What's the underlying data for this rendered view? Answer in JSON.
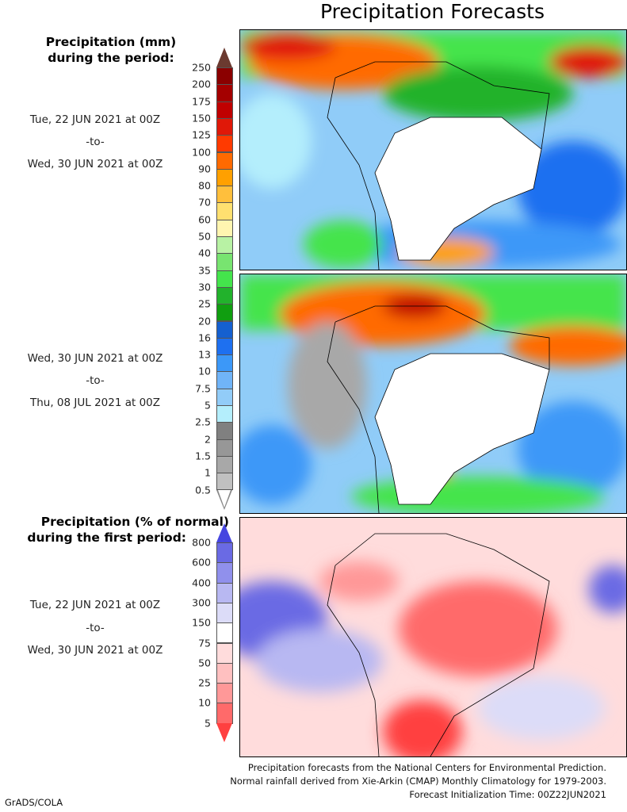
{
  "title": "Precipitation Forecasts",
  "amount_legend": {
    "heading": [
      "Precipitation (mm)",
      "during the period:"
    ],
    "labels": [
      "250",
      "200",
      "175",
      "150",
      "125",
      "100",
      "90",
      "80",
      "70",
      "60",
      "50",
      "40",
      "35",
      "30",
      "25",
      "20",
      "16",
      "13",
      "10",
      "7.5",
      "5",
      "2.5",
      "2",
      "1.5",
      "1",
      "0.5"
    ],
    "colors": [
      "#8b0000",
      "#a40000",
      "#c00000",
      "#e01808",
      "#ff3a00",
      "#ff6a00",
      "#ffa000",
      "#ffbf3c",
      "#ffe070",
      "#fff5b0",
      "#b8f2a4",
      "#78e470",
      "#44e44c",
      "#22b22c",
      "#109e10",
      "#1560d0",
      "#1e70f0",
      "#3c98f8",
      "#70b4f8",
      "#92ccf8",
      "#b4eefc",
      "#808080",
      "#979797",
      "#a8a8a8",
      "#c0c0c0"
    ],
    "over_color": "#6b3a30",
    "under_color": "#ffffff"
  },
  "period1": {
    "start": "Tue, 22 JUN 2021 at 00Z",
    "sep": "-to-",
    "end": "Wed, 30 JUN 2021 at 00Z"
  },
  "period2": {
    "start": "Wed, 30 JUN 2021 at 00Z",
    "sep": "-to-",
    "end": "Thu, 08 JUL 2021 at 00Z"
  },
  "percent_legend": {
    "heading": [
      "Precipitation (% of normal)",
      "during the first period:"
    ],
    "labels": [
      "800",
      "600",
      "400",
      "300",
      "150",
      "75",
      "50",
      "25",
      "10",
      "5"
    ],
    "colors": [
      "#6a6ae4",
      "#9090ec",
      "#b8b8f2",
      "#dcdcf8",
      "#ffffff",
      "#ffdcdc",
      "#ffc0c0",
      "#ff9898",
      "#ff6a6a"
    ],
    "over_color": "#4646e0",
    "under_color": "#ff4040"
  },
  "period3": {
    "start": "Tue, 22 JUN 2021 at 00Z",
    "sep": "-to-",
    "end": "Wed, 30 JUN 2021 at 00Z"
  },
  "footer": [
    "Precipitation forecasts from the National Centers for Environmental Prediction.",
    "Normal rainfall derived from Xie-Arkin (CMAP) Monthly Climatology for 1979-2003.",
    "Forecast Initialization Time: 00Z22JUN2021"
  ],
  "credit": "GrADS/COLA"
}
